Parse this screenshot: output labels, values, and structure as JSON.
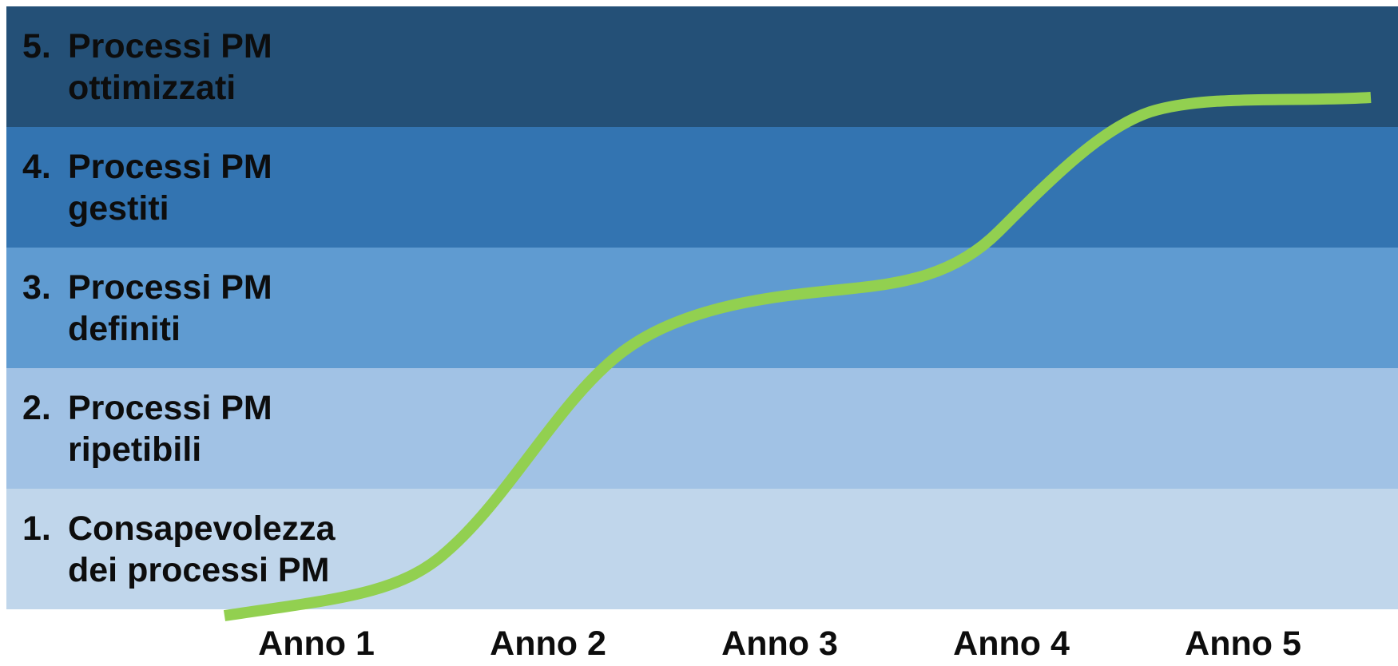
{
  "levels": [
    {
      "number": "5.",
      "line1": "Processi PM",
      "line2": "ottimizzati",
      "color": "#245077"
    },
    {
      "number": "4.",
      "line1": "Processi PM",
      "line2": "gestiti",
      "color": "#3374b1"
    },
    {
      "number": "3.",
      "line1": "Processi PM",
      "line2": "definiti",
      "color": "#5f9bd1"
    },
    {
      "number": "2.",
      "line1": "Processi PM",
      "line2": "ripetibili",
      "color": "#a1c2e5"
    },
    {
      "number": "1.",
      "line1": "Consapevolezza",
      "line2": "dei processi PM",
      "color": "#c0d6eb"
    }
  ],
  "years": [
    "Anno 1",
    "Anno 2",
    "Anno 3",
    "Anno 4",
    "Anno 5"
  ],
  "curve": {
    "color": "#92d050"
  }
}
